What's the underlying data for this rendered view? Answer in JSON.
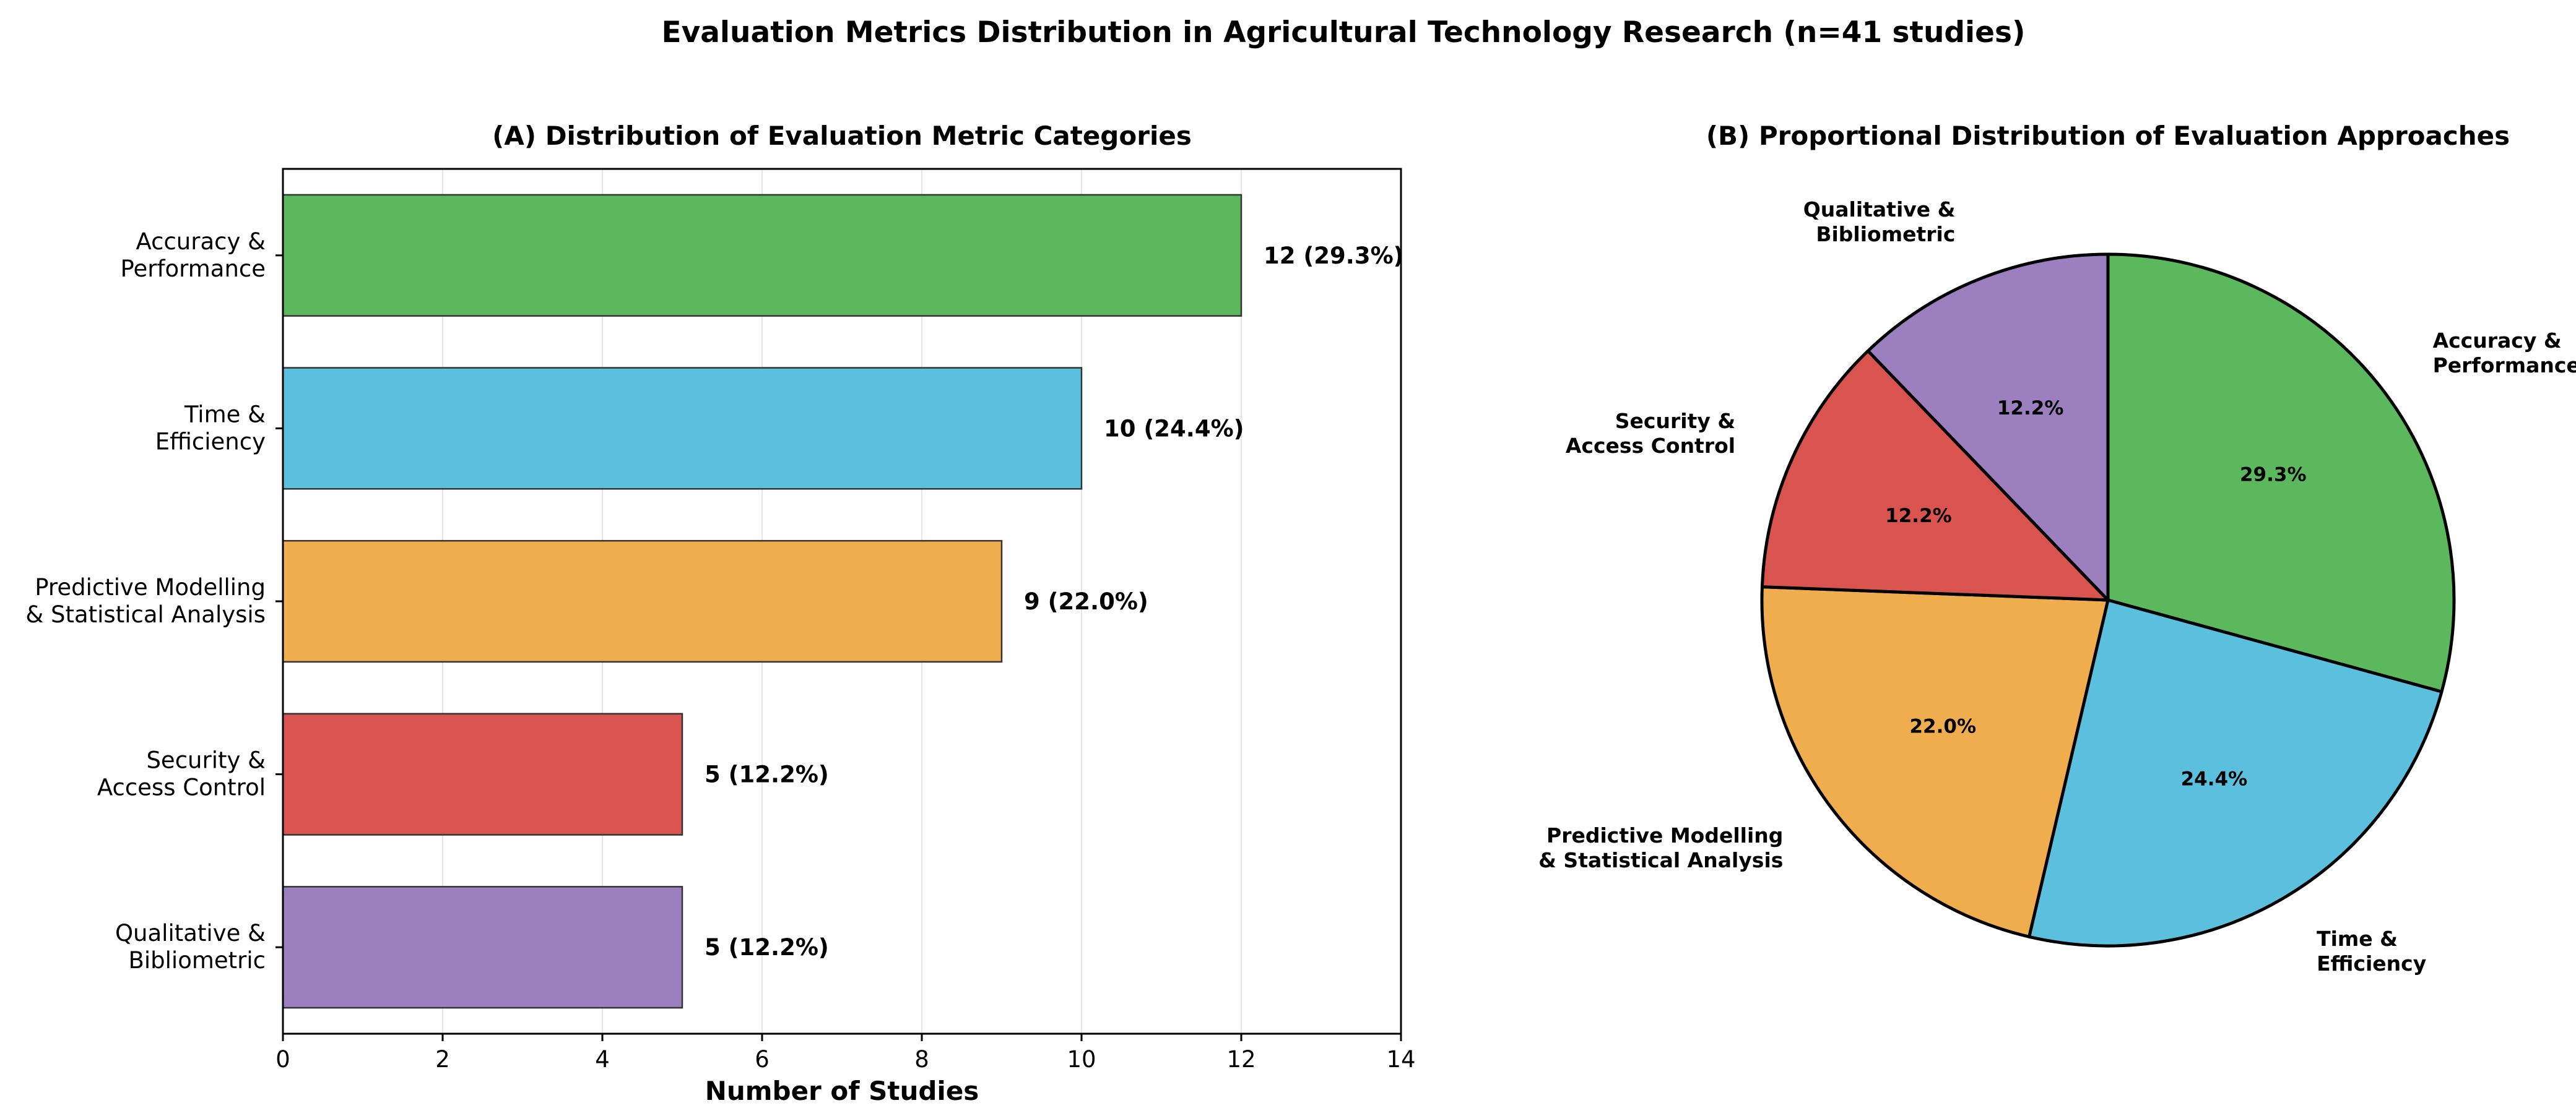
{
  "figure_title": "Evaluation Metrics Distribution in Agricultural Technology Research (n=41 studies)",
  "chart_data": [
    {
      "type": "bar",
      "orientation": "horizontal",
      "title": "(A) Distribution of Evaluation Metric Categories",
      "xlabel": "Number of Studies",
      "ylabel": "",
      "xlim": [
        0,
        14
      ],
      "xticks": [
        0,
        2,
        4,
        6,
        8,
        10,
        12,
        14
      ],
      "grid": "vertical",
      "categories": [
        [
          "Accuracy &",
          "Performance"
        ],
        [
          "Time &",
          "Efficiency"
        ],
        [
          "Predictive Modelling",
          "& Statistical Analysis"
        ],
        [
          "Security &",
          "Access Control"
        ],
        [
          "Qualitative &",
          "Bibliometric"
        ]
      ],
      "values": [
        12,
        10,
        9,
        5,
        5
      ],
      "value_labels": [
        "12 (29.3%)",
        "10 (24.4%)",
        "9 (22.0%)",
        "5 (12.2%)",
        "5 (12.2%)"
      ],
      "colors": [
        "#5cb85c",
        "#5bc0de",
        "#f0ad4e",
        "#d9534f",
        "#9b7fbf"
      ]
    },
    {
      "type": "pie",
      "title": "(B) Proportional Distribution of Evaluation Approaches",
      "start": "top",
      "direction": "clockwise",
      "labels": [
        [
          "Accuracy &",
          "Performance"
        ],
        [
          "Time &",
          "Efficiency"
        ],
        [
          "Predictive Modelling",
          "& Statistical Analysis"
        ],
        [
          "Security &",
          "Access Control"
        ],
        [
          "Qualitative &",
          "Bibliometric"
        ]
      ],
      "values": [
        12,
        10,
        9,
        5,
        5
      ],
      "percent_labels": [
        "29.3%",
        "24.4%",
        "22.0%",
        "12.2%",
        "12.2%"
      ],
      "colors": [
        "#5cb85c",
        "#5bc0de",
        "#f0ad4e",
        "#d9534f",
        "#9b7fbf"
      ]
    }
  ]
}
